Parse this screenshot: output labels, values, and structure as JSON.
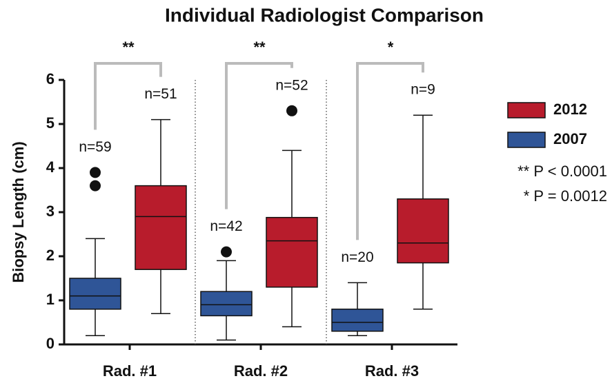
{
  "chart_data": {
    "type": "box",
    "title": "Individual Radiologist Comparison",
    "y_label": "Biopsy Length (cm)",
    "categories": [
      "Rad. #1",
      "Rad. #2",
      "Rad. #3"
    ],
    "series": [
      {
        "name": "2007",
        "color": "#2f5597",
        "low": [
          0.2,
          0.1,
          0.2
        ],
        "q1": [
          0.8,
          0.65,
          0.3
        ],
        "median": [
          1.1,
          0.9,
          0.5
        ],
        "q3": [
          1.5,
          1.2,
          0.8
        ],
        "high": [
          2.4,
          1.9,
          1.4
        ],
        "outliers": [
          [
            3.6,
            3.9
          ],
          [
            2.1
          ],
          []
        ],
        "n_labels": [
          "n=59",
          "n=42",
          "n=20"
        ]
      },
      {
        "name": "2012",
        "color": "#b81c2c",
        "low": [
          0.7,
          0.4,
          0.8
        ],
        "q1": [
          1.7,
          1.3,
          1.85
        ],
        "median": [
          2.9,
          2.35,
          2.3
        ],
        "q3": [
          3.6,
          2.88,
          3.3
        ],
        "high": [
          5.1,
          4.4,
          5.2
        ],
        "outliers": [
          [],
          [
            5.3
          ],
          []
        ],
        "n_labels": [
          "n=51",
          "n=52",
          "n=9"
        ]
      }
    ],
    "significance": [
      "**",
      "**",
      "*"
    ],
    "annotations": [
      "** P < 0.0001",
      "* P = 0.0012"
    ],
    "ylim": [
      0,
      6
    ],
    "yticks": [
      0,
      1,
      2,
      3,
      4,
      5,
      6
    ],
    "legend": "right"
  }
}
